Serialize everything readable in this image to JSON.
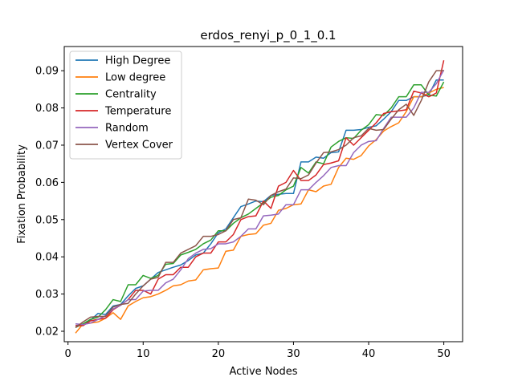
{
  "chart_data": {
    "type": "line",
    "title": "erdos_renyi_p_0_1_0.1",
    "xlabel": "Active Nodes",
    "ylabel": "Fixation Probability",
    "xlim": [
      -0.5,
      52.5
    ],
    "ylim": [
      0.0172,
      0.0965
    ],
    "xticks": [
      0,
      10,
      20,
      30,
      40,
      50
    ],
    "yticks": [
      0.02,
      0.03,
      0.04,
      0.05,
      0.06,
      0.07,
      0.08,
      0.09
    ],
    "ytick_labels": [
      "0.02",
      "0.03",
      "0.04",
      "0.05",
      "0.06",
      "0.07",
      "0.08",
      "0.09"
    ],
    "grid": false,
    "legend_position": "top-left",
    "x": [
      1,
      2,
      3,
      4,
      5,
      6,
      7,
      8,
      9,
      10,
      11,
      12,
      13,
      14,
      15,
      16,
      17,
      18,
      19,
      20,
      21,
      22,
      23,
      24,
      25,
      26,
      27,
      28,
      29,
      30,
      31,
      32,
      33,
      34,
      35,
      36,
      37,
      38,
      39,
      40,
      41,
      42,
      43,
      44,
      45,
      46,
      47,
      48,
      49,
      50
    ],
    "series": [
      {
        "name": "High Degree",
        "color": "#1f77b4",
        "values": [
          0.0215,
          0.0218,
          0.023,
          0.0248,
          0.0245,
          0.0268,
          0.0272,
          0.0295,
          0.0315,
          0.0322,
          0.034,
          0.0358,
          0.0365,
          0.0372,
          0.0378,
          0.039,
          0.0405,
          0.041,
          0.0435,
          0.0465,
          0.0475,
          0.0505,
          0.0535,
          0.0542,
          0.055,
          0.0548,
          0.0565,
          0.0568,
          0.057,
          0.057,
          0.0655,
          0.0655,
          0.0668,
          0.0665,
          0.068,
          0.0682,
          0.074,
          0.074,
          0.0742,
          0.0748,
          0.0752,
          0.077,
          0.079,
          0.082,
          0.082,
          0.083,
          0.083,
          0.0835,
          0.0875,
          0.0875
        ]
      },
      {
        "name": "Low degree",
        "color": "#ff7f0e",
        "values": [
          0.0195,
          0.022,
          0.0222,
          0.0225,
          0.0235,
          0.025,
          0.0232,
          0.0268,
          0.028,
          0.029,
          0.0293,
          0.03,
          0.031,
          0.0322,
          0.0325,
          0.0335,
          0.0338,
          0.0365,
          0.0368,
          0.037,
          0.0415,
          0.0418,
          0.0455,
          0.046,
          0.0462,
          0.0485,
          0.049,
          0.0525,
          0.053,
          0.054,
          0.0542,
          0.058,
          0.0575,
          0.059,
          0.0595,
          0.064,
          0.0665,
          0.0662,
          0.0672,
          0.0698,
          0.0715,
          0.0738,
          0.075,
          0.076,
          0.079,
          0.083,
          0.083,
          0.084,
          0.085,
          0.0855
        ]
      },
      {
        "name": "Centrality",
        "color": "#2ca02c",
        "values": [
          0.021,
          0.022,
          0.0232,
          0.0238,
          0.0258,
          0.0285,
          0.028,
          0.0325,
          0.0325,
          0.035,
          0.0342,
          0.035,
          0.038,
          0.0382,
          0.0405,
          0.0412,
          0.042,
          0.0435,
          0.0445,
          0.047,
          0.047,
          0.049,
          0.0505,
          0.0515,
          0.053,
          0.0545,
          0.056,
          0.0565,
          0.058,
          0.059,
          0.064,
          0.0625,
          0.0655,
          0.065,
          0.0695,
          0.071,
          0.072,
          0.0718,
          0.074,
          0.0755,
          0.0782,
          0.078,
          0.08,
          0.083,
          0.083,
          0.0862,
          0.0862,
          0.0835,
          0.0832,
          0.087
        ]
      },
      {
        "name": "Temperature",
        "color": "#d62728",
        "values": [
          0.0215,
          0.0215,
          0.0228,
          0.0232,
          0.0235,
          0.0258,
          0.027,
          0.0285,
          0.031,
          0.031,
          0.03,
          0.034,
          0.0352,
          0.0352,
          0.0372,
          0.0372,
          0.04,
          0.041,
          0.041,
          0.044,
          0.044,
          0.046,
          0.05,
          0.0508,
          0.051,
          0.055,
          0.053,
          0.059,
          0.06,
          0.0632,
          0.0605,
          0.0605,
          0.062,
          0.0648,
          0.0652,
          0.0658,
          0.072,
          0.07,
          0.072,
          0.074,
          0.076,
          0.0785,
          0.079,
          0.0792,
          0.0795,
          0.0845,
          0.084,
          0.083,
          0.084,
          0.0928
        ]
      },
      {
        "name": "Random",
        "color": "#9467bd",
        "values": [
          0.022,
          0.0218,
          0.0222,
          0.0232,
          0.0242,
          0.026,
          0.027,
          0.0285,
          0.0285,
          0.0308,
          0.031,
          0.031,
          0.033,
          0.034,
          0.0365,
          0.0395,
          0.041,
          0.042,
          0.0422,
          0.0435,
          0.0435,
          0.044,
          0.0455,
          0.0475,
          0.0475,
          0.051,
          0.0512,
          0.0515,
          0.054,
          0.054,
          0.058,
          0.058,
          0.06,
          0.0618,
          0.064,
          0.0645,
          0.0645,
          0.068,
          0.07,
          0.071,
          0.0712,
          0.0745,
          0.0775,
          0.0775,
          0.0775,
          0.08,
          0.0842,
          0.0842,
          0.0865,
          0.0902
        ]
      },
      {
        "name": "Vertex Cover",
        "color": "#8c564b",
        "values": [
          0.021,
          0.0225,
          0.0238,
          0.024,
          0.024,
          0.0265,
          0.0272,
          0.0275,
          0.03,
          0.0322,
          0.034,
          0.0345,
          0.0385,
          0.0385,
          0.041,
          0.042,
          0.043,
          0.0455,
          0.0455,
          0.046,
          0.047,
          0.05,
          0.0505,
          0.0555,
          0.0552,
          0.054,
          0.0565,
          0.0575,
          0.0582,
          0.0612,
          0.061,
          0.062,
          0.0652,
          0.068,
          0.0682,
          0.0688,
          0.07,
          0.072,
          0.0725,
          0.0745,
          0.074,
          0.0742,
          0.077,
          0.0795,
          0.081,
          0.078,
          0.082,
          0.087,
          0.09,
          0.09
        ]
      }
    ]
  }
}
